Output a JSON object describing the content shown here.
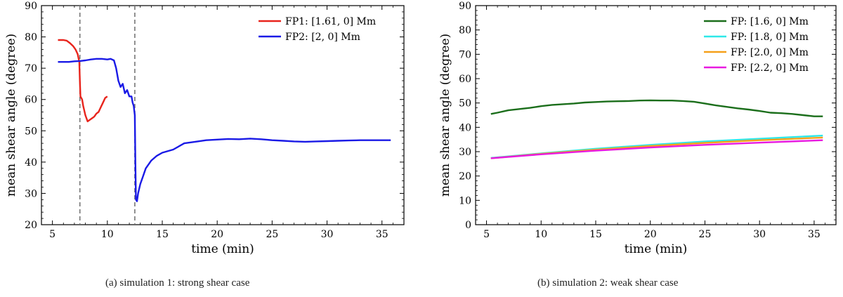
{
  "charts": [
    {
      "caption": "(a) simulation 1: strong shear case",
      "chart_data": {
        "type": "line",
        "xlabel": "time (min)",
        "ylabel": "mean shear angle (degree)",
        "xlim": [
          4,
          37
        ],
        "ylim": [
          20,
          90
        ],
        "xticks": [
          5,
          10,
          15,
          20,
          25,
          30,
          35
        ],
        "yticks": [
          20,
          30,
          40,
          50,
          60,
          70,
          80,
          90
        ],
        "legend_position": "top-right",
        "vlines": [
          7.5,
          12.5
        ],
        "series": [
          {
            "name": "FP1: [1.61, 0] Mm",
            "color": "#e8241c",
            "x": [
              5.5,
              6.0,
              6.3,
              6.6,
              6.9,
              7.1,
              7.3,
              7.45,
              7.5,
              7.55,
              7.7,
              7.8,
              8.0,
              8.2,
              8.4,
              8.6,
              8.8,
              9.0,
              9.2,
              9.4,
              9.6,
              9.8,
              10.0
            ],
            "y": [
              79,
              79,
              78.8,
              78,
              77,
              76,
              74.5,
              72,
              66,
              61,
              60,
              58,
              55,
              53,
              53.5,
              54,
              54.5,
              55.5,
              56,
              57.5,
              59,
              60.5,
              61
            ]
          },
          {
            "name": "FP2: [2, 0] Mm",
            "color": "#1a1ae6",
            "x": [
              5.5,
              6.0,
              6.5,
              7.0,
              7.5,
              8.0,
              8.5,
              9.0,
              9.5,
              10.0,
              10.3,
              10.6,
              10.8,
              11.0,
              11.2,
              11.4,
              11.6,
              11.8,
              12.0,
              12.2,
              12.3,
              12.4,
              12.5,
              12.55,
              12.6,
              12.7,
              12.8,
              13.0,
              13.2,
              13.5,
              14.0,
              14.5,
              15.0,
              16.0,
              17.0,
              18.0,
              19.0,
              20.0,
              21.0,
              22.0,
              23.0,
              24.0,
              25.0,
              26.0,
              27.0,
              28.0,
              29.0,
              30.0,
              31.0,
              32.0,
              33.0,
              34.0,
              35.0,
              35.8
            ],
            "y": [
              72,
              72,
              72,
              72.2,
              72.3,
              72.5,
              72.8,
              73,
              73,
              72.8,
              73,
              72.5,
              70,
              66,
              64,
              65,
              62,
              63,
              61,
              61,
              59,
              58,
              55,
              40,
              28,
              27.5,
              30,
              33,
              35,
              38,
              40.5,
              42,
              43,
              44,
              46,
              46.5,
              47,
              47.2,
              47.4,
              47.3,
              47.5,
              47.3,
              47,
              46.8,
              46.6,
              46.5,
              46.6,
              46.7,
              46.8,
              46.9,
              47,
              47,
              47,
              47
            ]
          }
        ]
      }
    },
    {
      "caption": "(b) simulation 2: weak shear case",
      "chart_data": {
        "type": "line",
        "xlabel": "time (min)",
        "ylabel": "mean shear angle (degree)",
        "xlim": [
          4,
          37
        ],
        "ylim": [
          0,
          90
        ],
        "xticks": [
          5,
          10,
          15,
          20,
          25,
          30,
          35
        ],
        "yticks": [
          0,
          10,
          20,
          30,
          40,
          50,
          60,
          70,
          80,
          90
        ],
        "legend_position": "top-right",
        "vlines": [],
        "series": [
          {
            "name": "FP: [1.6, 0] Mm",
            "color": "#1b6e1b",
            "x": [
              5.4,
              6.0,
              7.0,
              8.0,
              9.0,
              10.0,
              11.0,
              12.0,
              13.0,
              14.0,
              15.0,
              16.0,
              17.0,
              18.0,
              19.0,
              20.0,
              21.0,
              22.0,
              23.0,
              24.0,
              25.0,
              26.0,
              27.0,
              28.0,
              29.0,
              30.0,
              31.0,
              32.0,
              33.0,
              34.0,
              35.0,
              35.8
            ],
            "y": [
              45.5,
              46,
              47,
              47.5,
              48,
              48.7,
              49.2,
              49.5,
              49.8,
              50.2,
              50.4,
              50.6,
              50.7,
              50.8,
              51,
              51.1,
              51,
              51,
              50.8,
              50.5,
              49.8,
              49,
              48.4,
              47.8,
              47.3,
              46.7,
              46,
              45.8,
              45.5,
              45,
              44.5,
              44.5
            ]
          },
          {
            "name": "FP: [1.8, 0] Mm",
            "color": "#2ee8e8",
            "x": [
              5.4,
              10.0,
              15.0,
              20.0,
              25.0,
              30.0,
              35.8
            ],
            "y": [
              27.4,
              29.3,
              31.2,
              32.8,
              34.2,
              35.3,
              36.6
            ]
          },
          {
            "name": "FP: [2.0, 0] Mm",
            "color": "#f5a01a",
            "x": [
              5.4,
              10.0,
              15.0,
              20.0,
              25.0,
              30.0,
              35.8
            ],
            "y": [
              27.3,
              29.1,
              30.8,
              32.3,
              33.6,
              34.7,
              35.8
            ]
          },
          {
            "name": "FP: [2.2, 0] Mm",
            "color": "#e81ae0",
            "x": [
              5.4,
              10.0,
              15.0,
              20.0,
              25.0,
              30.0,
              35.8
            ],
            "y": [
              27.3,
              28.9,
              30.4,
              31.7,
              32.8,
              33.7,
              34.7
            ]
          }
        ]
      }
    }
  ]
}
